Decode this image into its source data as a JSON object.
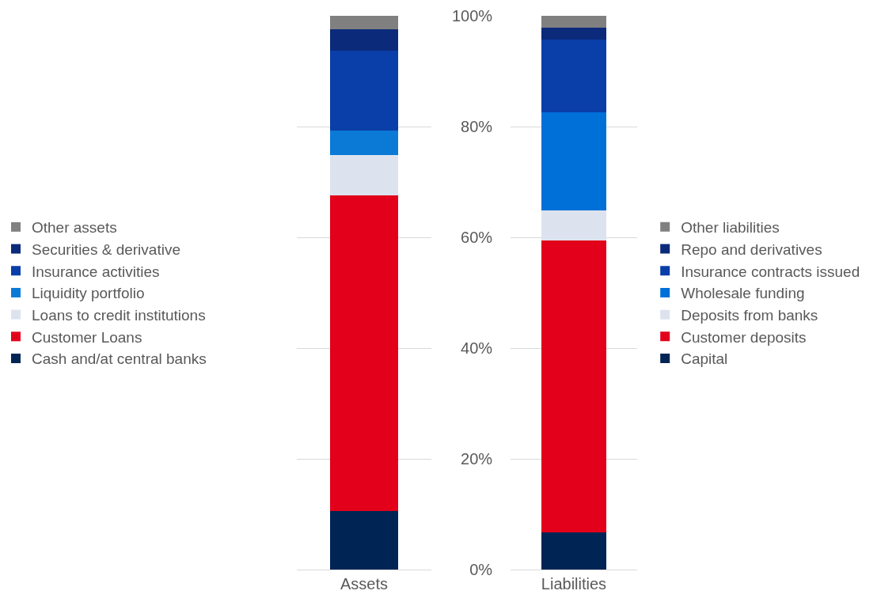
{
  "chart_data": [
    {
      "type": "bar",
      "categories": [
        "Assets"
      ],
      "stacked": true,
      "ylim": [
        0,
        100
      ],
      "yticks": [
        0,
        20,
        40,
        60,
        80,
        100
      ],
      "grid": "y",
      "legend": "left",
      "tick_labels": "x",
      "series": [
        {
          "name": "Cash and/at central banks",
          "color": "#002554",
          "values": [
            10.6
          ]
        },
        {
          "name": "Customer Loans",
          "color": "#e2001a",
          "values": [
            57.0
          ]
        },
        {
          "name": "Loans to credit institutions",
          "color": "#dde3ee",
          "values": [
            7.3
          ]
        },
        {
          "name": "Liquidity portfolio",
          "color": "#0a7ad6",
          "values": [
            4.4
          ]
        },
        {
          "name": "Insurance activities",
          "color": "#0a3ea8",
          "values": [
            14.4
          ]
        },
        {
          "name": "Securities & derivative",
          "color": "#0b2a7a",
          "values": [
            3.9
          ]
        },
        {
          "name": "Other assets",
          "color": "#808080",
          "values": [
            2.4
          ]
        }
      ]
    },
    {
      "type": "bar",
      "categories": [
        "Liabilities"
      ],
      "stacked": true,
      "ylim": [
        0,
        100
      ],
      "yticks": [
        {
          "value": 0,
          "label": "0%"
        },
        {
          "value": 20,
          "label": "20%"
        },
        {
          "value": 40,
          "label": "40%"
        },
        {
          "value": 60,
          "label": "60%"
        },
        {
          "value": 80,
          "label": "80%"
        },
        {
          "value": 100,
          "label": "100%"
        }
      ],
      "grid": "y",
      "legend": "right",
      "series": [
        {
          "name": "Capital",
          "color": "#002554",
          "values": [
            6.7
          ]
        },
        {
          "name": "Customer deposits",
          "color": "#e2001a",
          "values": [
            52.7
          ]
        },
        {
          "name": "Deposits from banks",
          "color": "#dde3ee",
          "values": [
            5.5
          ]
        },
        {
          "name": "Wholesale funding",
          "color": "#0070d9",
          "values": [
            17.7
          ]
        },
        {
          "name": "Insurance contracts issued",
          "color": "#0a3ea8",
          "values": [
            13.1
          ]
        },
        {
          "name": "Repo and derivatives",
          "color": "#0b2a7a",
          "values": [
            2.2
          ]
        },
        {
          "name": "Other liabilities",
          "color": "#808080",
          "values": [
            2.1
          ]
        }
      ]
    }
  ]
}
